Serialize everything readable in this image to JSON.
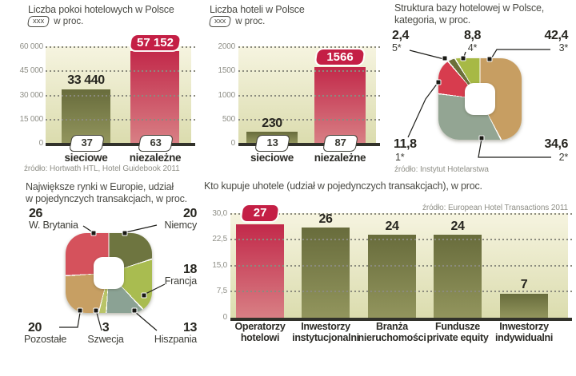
{
  "colors": {
    "accent_red": "#c41f45",
    "bar_red_top": "#c2294a",
    "bar_red_bottom": "#d87f84",
    "bar_olive_top": "#686c3c",
    "bar_olive_bottom": "#92955d",
    "plot_bg_top": "#f6f4e0",
    "plot_bg_bottom": "#dbdcae"
  },
  "chart_data": [
    {
      "id": "rooms",
      "type": "bar",
      "title": "Liczba pokoi hotelowych w Polsce",
      "subtitle_box": "xxx",
      "subtitle": "w proc.",
      "categories": [
        "sieciowe",
        "niezależne"
      ],
      "values": [
        33440,
        57152
      ],
      "value_labels": [
        "33 440",
        "57 152"
      ],
      "percent_badges": [
        "37",
        "63"
      ],
      "ylim": [
        0,
        60000
      ],
      "yticks": [
        "60 000",
        "45 000",
        "30 000",
        "15 000",
        "0"
      ],
      "grid": "dotted",
      "source": "źródło: Hortwath HTL, Hotel Guidebook 2011",
      "highlight_index": 1
    },
    {
      "id": "hotels",
      "type": "bar",
      "title": "Liczba hoteli w Polsce",
      "subtitle_box": "xxx",
      "subtitle": "w proc.",
      "categories": [
        "sieciowe",
        "niezależne"
      ],
      "values": [
        230,
        1566
      ],
      "value_labels": [
        "230",
        "1566"
      ],
      "percent_badges": [
        "13",
        "87"
      ],
      "ylim": [
        0,
        2000
      ],
      "yticks": [
        "2000",
        "1500",
        "1000",
        "500",
        "0"
      ],
      "grid": "dotted",
      "source": "",
      "highlight_index": 1
    },
    {
      "id": "hotel-categories",
      "type": "pie",
      "title": "Struktura bazy hotelowej w Polsce, kategoria, w proc.",
      "title_lines": [
        "Struktura bazy hotelowej w Polsce,",
        "kategoria, w proc."
      ],
      "slices": [
        {
          "label": "3*",
          "value": 42.4,
          "value_label": "42,4",
          "color": "#c79e62"
        },
        {
          "label": "2*",
          "value": 34.6,
          "value_label": "34,6",
          "color": "#93a593"
        },
        {
          "label": "1*",
          "value": 11.8,
          "value_label": "11,8",
          "color": "#d73c4e"
        },
        {
          "label": "5*",
          "value": 2.4,
          "value_label": "2,4",
          "color": "#6b6f3a"
        },
        {
          "label": "4*",
          "value": 8.8,
          "value_label": "8,8",
          "color": "#a7b945"
        }
      ],
      "source": "źródło: Instytut Hotelarstwa"
    },
    {
      "id": "european-markets",
      "type": "pie",
      "title": "Największe rynki w Europie, udział w pojedynczych transakcjach, w proc.",
      "title_lines": [
        "Największe rynki w Europie, udział",
        "w pojedynczych transakcjach, w proc."
      ],
      "slices": [
        {
          "label": "Niemcy",
          "value": 20,
          "value_label": "20",
          "color": "#6e7540"
        },
        {
          "label": "Francja",
          "value": 18,
          "value_label": "18",
          "color": "#a9bc50"
        },
        {
          "label": "Hiszpania",
          "value": 13,
          "value_label": "13",
          "color": "#8ba294"
        },
        {
          "label": "Szwecja",
          "value": 3,
          "value_label": "3",
          "color": "#b9c468"
        },
        {
          "label": "Pozostałe",
          "value": 20,
          "value_label": "20",
          "color": "#c79f63"
        },
        {
          "label": "W. Brytania",
          "value": 26,
          "value_label": "26",
          "color": "#d5525c"
        }
      ],
      "source": ""
    },
    {
      "id": "hotel-buyers",
      "type": "bar",
      "title": "Kto kupuje uhotele (udział w pojedynczych transakcjach), w proc.",
      "categories": [
        "Operatorzy hotelowi",
        "Inwestorzy instytucjonalni",
        "Branża nieruchomości",
        "Fundusze private equity",
        "Inwestorzy indywidualni"
      ],
      "category_lines": [
        [
          "Operatorzy",
          "hotelowi"
        ],
        [
          "Inwestorzy",
          "instytucjonalni"
        ],
        [
          "Branża",
          "nieruchomości"
        ],
        [
          "Fundusze",
          "private equity"
        ],
        [
          "Inwestorzy",
          "indywidualni"
        ]
      ],
      "values": [
        27,
        26,
        24,
        24,
        7
      ],
      "value_labels": [
        "27",
        "26",
        "24",
        "24",
        "7"
      ],
      "ylim": [
        0,
        30
      ],
      "yticks": [
        "30,0",
        "22,5",
        "15,0",
        "7,5",
        "0"
      ],
      "grid": "dotted",
      "source": "źródło: European Hotel Transactions 2011",
      "highlight_index": 0
    }
  ]
}
